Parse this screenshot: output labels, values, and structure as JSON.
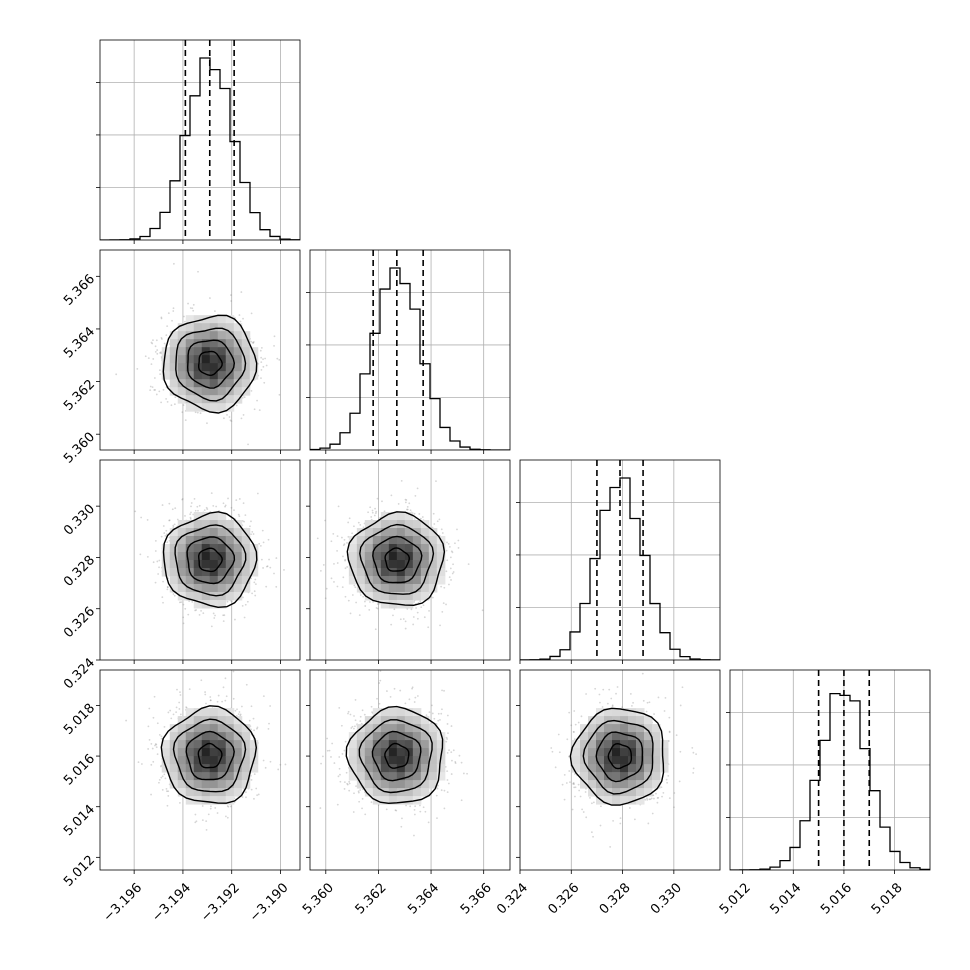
{
  "chart_data": {
    "type": "corner",
    "n_params": 4,
    "params": [
      {
        "ticks": [
          -3.196,
          -3.194,
          -3.192,
          -3.19
        ],
        "tick_labels": [
          "−3.196",
          "−3.194",
          "−3.192",
          "−3.190"
        ],
        "range": [
          -3.1974,
          -3.1892
        ],
        "mean": -3.1929,
        "sd": 0.00095,
        "quantiles": [
          -3.1939,
          -3.1929,
          -3.1919
        ]
      },
      {
        "ticks": [
          5.36,
          5.362,
          5.364,
          5.366
        ],
        "tick_labels": [
          "5.360",
          "5.362",
          "5.364",
          "5.366"
        ],
        "range": [
          5.3594,
          5.367
        ],
        "mean": 5.3627,
        "sd": 0.0009,
        "quantiles": [
          5.3618,
          5.3627,
          5.3637
        ]
      },
      {
        "ticks": [
          0.324,
          0.326,
          0.328,
          0.33
        ],
        "tick_labels": [
          "0.324",
          "0.326",
          "0.328",
          "0.330"
        ],
        "range": [
          0.324,
          0.3318
        ],
        "mean": 0.3279,
        "sd": 0.0009,
        "quantiles": [
          0.327,
          0.3279,
          0.3288
        ]
      },
      {
        "ticks": [
          5.012,
          5.014,
          5.016,
          5.018
        ],
        "tick_labels": [
          "5.012",
          "5.014",
          "5.016",
          "5.018"
        ],
        "range": [
          5.0115,
          5.0194
        ],
        "mean": 5.016,
        "sd": 0.00095,
        "quantiles": [
          5.015,
          5.016,
          5.017
        ]
      }
    ],
    "histogram_bins": 20,
    "grid": true,
    "contour_levels_sigma": [
      0.5,
      1.0,
      1.5,
      2.0
    ]
  }
}
